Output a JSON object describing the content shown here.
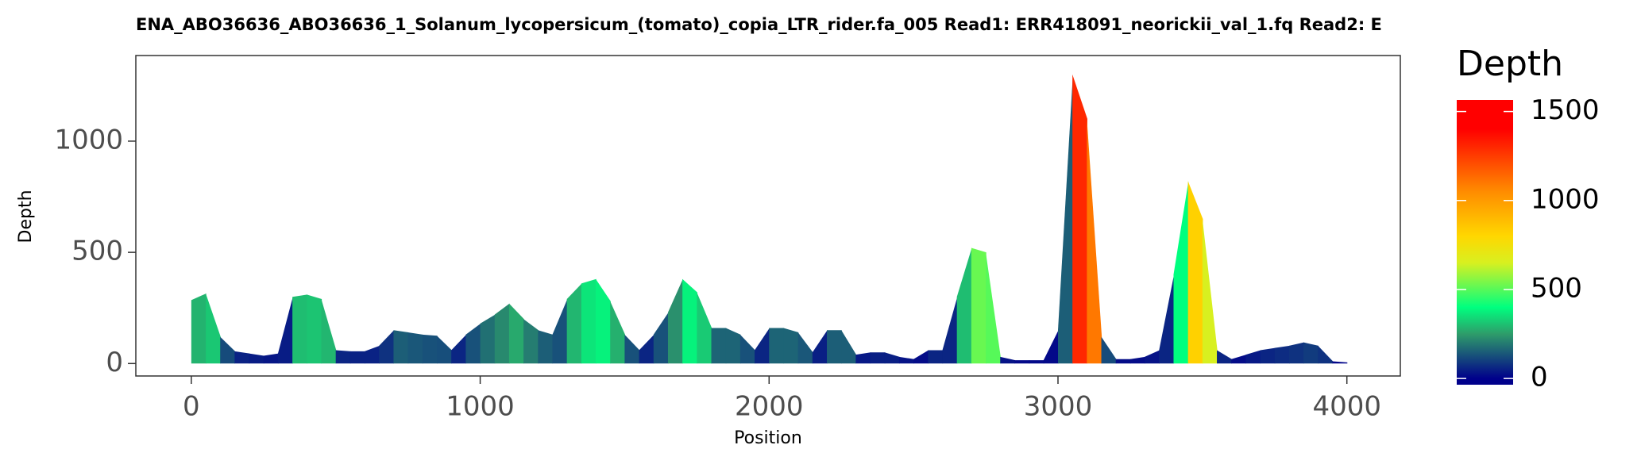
{
  "chart_data": {
    "type": "area",
    "title": "ENA_ABO36636_ABO36636_1_Solanum_lycopersicum_(tomato)_copia_LTR_rider.fa_005    Read1: ERR418091_neorickii_val_1.fq    Read2: E",
    "x_label": "Position",
    "y_label": "Depth",
    "x": [
      0,
      50,
      100,
      150,
      200,
      250,
      300,
      350,
      400,
      450,
      500,
      550,
      600,
      650,
      700,
      750,
      800,
      850,
      900,
      950,
      1000,
      1050,
      1100,
      1150,
      1200,
      1250,
      1300,
      1350,
      1400,
      1450,
      1500,
      1550,
      1600,
      1650,
      1700,
      1750,
      1800,
      1850,
      1900,
      1950,
      2000,
      2050,
      2100,
      2150,
      2200,
      2250,
      2300,
      2350,
      2400,
      2450,
      2500,
      2550,
      2600,
      2650,
      2700,
      2750,
      2800,
      2850,
      2900,
      2950,
      3000,
      3050,
      3100,
      3150,
      3200,
      3250,
      3300,
      3350,
      3400,
      3450,
      3500,
      3550,
      3600,
      3650,
      3700,
      3750,
      3800,
      3850,
      3900,
      3950,
      4000
    ],
    "values": [
      285,
      315,
      120,
      55,
      45,
      35,
      45,
      300,
      310,
      290,
      60,
      55,
      55,
      80,
      150,
      140,
      130,
      125,
      60,
      130,
      180,
      220,
      270,
      200,
      150,
      130,
      290,
      360,
      380,
      280,
      130,
      60,
      130,
      230,
      380,
      320,
      160,
      160,
      130,
      60,
      160,
      160,
      140,
      50,
      150,
      150,
      40,
      50,
      50,
      30,
      20,
      60,
      60,
      300,
      520,
      500,
      30,
      15,
      15,
      15,
      150,
      1300,
      1100,
      120,
      20,
      20,
      30,
      60,
      400,
      820,
      650,
      60,
      20,
      40,
      60,
      70,
      80,
      95,
      80,
      10,
      5
    ],
    "xlim": [
      -192,
      4185
    ],
    "xticks": [
      0,
      1000,
      2000,
      3000,
      4000
    ],
    "ylim": [
      -56,
      1385
    ],
    "yticks": [
      0,
      500,
      1000
    ],
    "legend_title": "Depth",
    "colorlim": [
      -35,
      1565
    ],
    "colorticks": [
      0,
      500,
      1000,
      1500
    ],
    "colorscale": [
      [
        0,
        "#00008b"
      ],
      [
        250,
        "#2e9c6a"
      ],
      [
        400,
        "#00ff7f"
      ],
      [
        650,
        "#d8f020"
      ],
      [
        800,
        "#ffd700"
      ],
      [
        1050,
        "#ff8c00"
      ],
      [
        1400,
        "#ff0000"
      ],
      [
        1565,
        "#ff0000"
      ]
    ]
  }
}
